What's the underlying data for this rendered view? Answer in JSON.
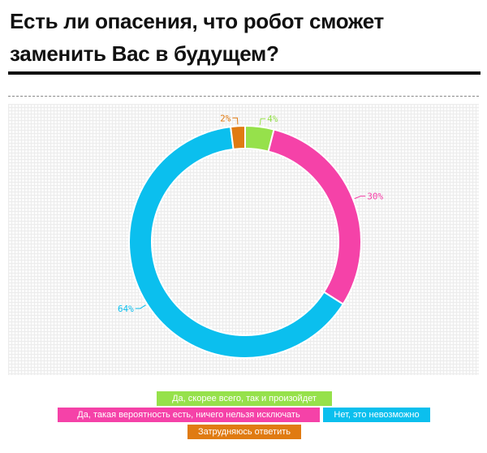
{
  "title": "Есть ли опасения, что робот сможет заменить Вас в будущем?",
  "chart_data": {
    "type": "pie",
    "donut": true,
    "slices": [
      {
        "label": "Да, скорее всего, так и произойдет",
        "value": 4,
        "display": "4%",
        "color": "#96e14b"
      },
      {
        "label": "Да, такая вероятность есть, ничего нельзя исключать",
        "value": 30,
        "display": "30%",
        "color": "#f542a8"
      },
      {
        "label": "Нет, это невозможно",
        "value": 64,
        "display": "64%",
        "color": "#0bbfee"
      },
      {
        "label": "Затрудняюсь ответить",
        "value": 2,
        "display": "2%",
        "color": "#e07b12"
      }
    ],
    "legend_position": "bottom",
    "grid": true
  }
}
